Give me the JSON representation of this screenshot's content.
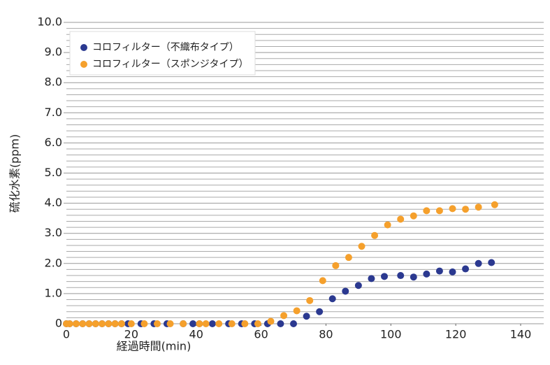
{
  "chart_data": {
    "type": "scatter",
    "xlabel": "経過時間(min)",
    "ylabel": "硫化水素(ppm)",
    "xlim": [
      0,
      140
    ],
    "xticks": [
      0,
      20,
      40,
      60,
      80,
      100,
      120,
      140
    ],
    "ylim": [
      0,
      10
    ],
    "yticks": [
      0,
      {
        "value": 1,
        "label": "1.0"
      },
      {
        "value": 2,
        "label": "2.0"
      },
      {
        "value": 3,
        "label": "3.0"
      },
      {
        "value": 4,
        "label": "4.0"
      },
      {
        "value": 5,
        "label": "5.0"
      },
      {
        "value": 6,
        "label": "6.0"
      },
      {
        "value": 7,
        "label": "7.0"
      },
      {
        "value": 8,
        "label": "8.0"
      },
      {
        "value": 9,
        "label": "9.0"
      },
      {
        "value": 10,
        "label": "10.0"
      }
    ],
    "grid": true,
    "legend": "top-left",
    "series": [
      {
        "name": "コロフィルター（不織布タイプ）",
        "color": "#2b3990",
        "x": [
          0,
          1,
          3,
          5,
          7,
          9,
          11,
          13,
          15,
          17,
          19,
          23,
          27,
          31,
          36,
          39,
          41,
          45,
          50,
          54,
          58,
          62,
          66,
          70,
          74,
          78,
          82,
          86,
          90,
          94,
          98,
          103,
          107,
          111,
          115,
          119,
          123,
          127,
          131
        ],
        "values": [
          0,
          0,
          0,
          0,
          0,
          0,
          0,
          0,
          0,
          0,
          0,
          0,
          0,
          0,
          0,
          0,
          0,
          0,
          0,
          0,
          0,
          0,
          0,
          0,
          0.25,
          0.4,
          0.83,
          1.08,
          1.27,
          1.5,
          1.57,
          1.6,
          1.55,
          1.65,
          1.75,
          1.72,
          1.82,
          2.0,
          2.03
        ]
      },
      {
        "name": "コロフィルター（スポンジタイプ）",
        "color": "#f5a02c",
        "x": [
          0,
          1,
          3,
          5,
          7,
          9,
          11,
          13,
          15,
          17,
          20,
          24,
          28,
          32,
          36,
          41,
          43,
          47,
          51,
          55,
          59,
          63,
          67,
          71,
          75,
          79,
          83,
          87,
          91,
          95,
          99,
          103,
          107,
          111,
          115,
          119,
          123,
          127,
          132
        ],
        "values": [
          0,
          0,
          0,
          0,
          0,
          0,
          0,
          0,
          0,
          0,
          0,
          0,
          0,
          0,
          0,
          0,
          0,
          0,
          0,
          0,
          0,
          0.08,
          0.27,
          0.43,
          0.77,
          1.43,
          1.93,
          2.2,
          2.57,
          2.93,
          3.28,
          3.47,
          3.58,
          3.75,
          3.75,
          3.82,
          3.8,
          3.87,
          3.95
        ]
      }
    ]
  }
}
